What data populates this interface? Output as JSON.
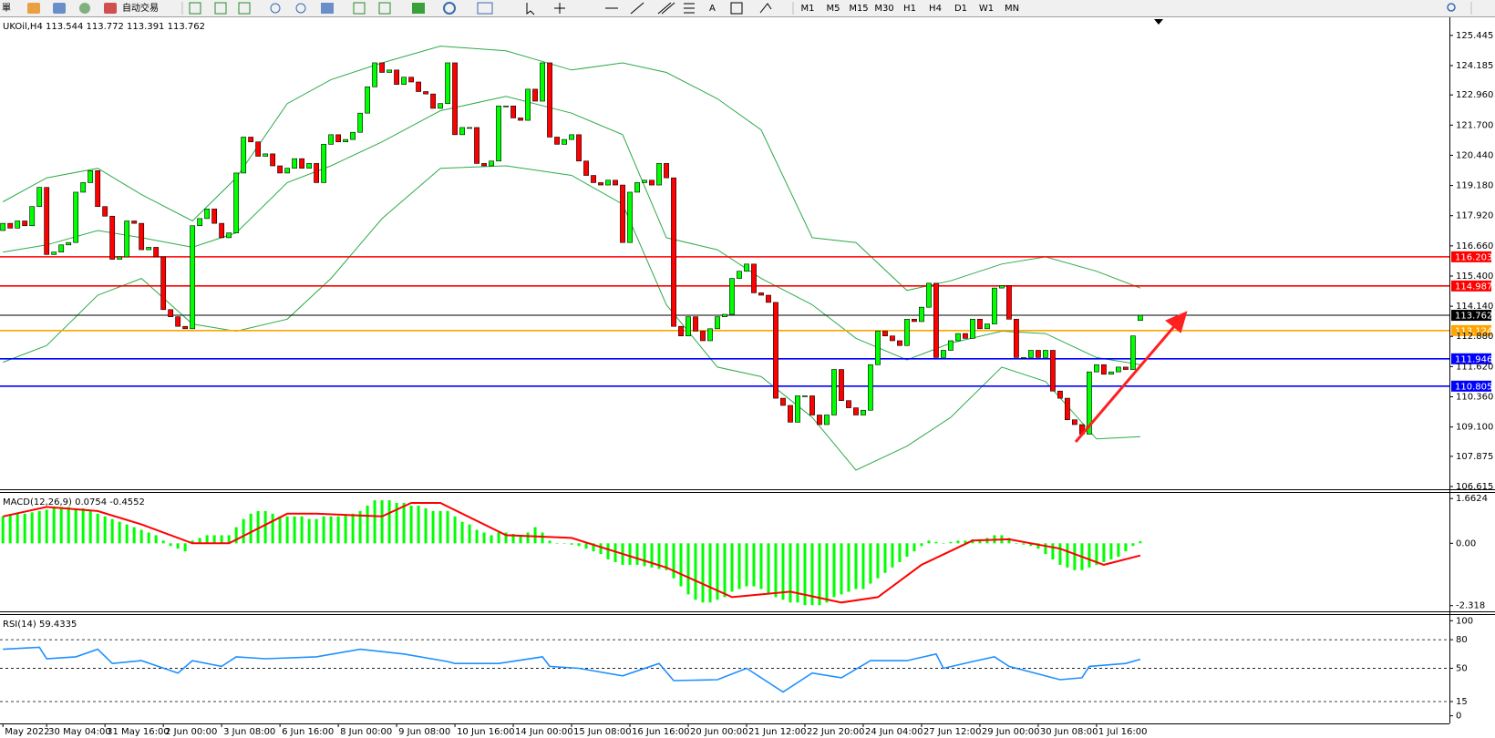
{
  "toolbar": {
    "orders_label": "單",
    "autotrade": "自动交易",
    "text_tool": "A",
    "timeframes": [
      "M1",
      "M5",
      "M15",
      "M30",
      "H1",
      "H4",
      "D1",
      "W1",
      "MN"
    ]
  },
  "chart_data": [
    {
      "type": "candlestick",
      "title": "UKOil,H4  113.544 113.772 113.391 113.762",
      "up_color": "#00ff00",
      "down_color": "#ff0000",
      "xlim": [
        -0.4,
        198.4
      ],
      "xticks": [
        {
          "value": 0,
          "label": "May 2022"
        },
        {
          "value": 6,
          "label": "30 May 04:00"
        },
        {
          "value": 14,
          "label": "31 May 16:00"
        },
        {
          "value": 22,
          "label": "2 Jun 00:00"
        },
        {
          "value": 30,
          "label": "3 Jun 08:00"
        },
        {
          "value": 38,
          "label": "6 Jun 16:00"
        },
        {
          "value": 46,
          "label": "8 Jun 00:00"
        },
        {
          "value": 54,
          "label": "9 Jun 08:00"
        },
        {
          "value": 62,
          "label": "10 Jun 16:00"
        },
        {
          "value": 70,
          "label": "14 Jun 00:00"
        },
        {
          "value": 78,
          "label": "15 Jun 08:00"
        },
        {
          "value": 86,
          "label": "16 Jun 16:00"
        },
        {
          "value": 94,
          "label": "20 Jun 00:00"
        },
        {
          "value": 102,
          "label": "21 Jun 12:00"
        },
        {
          "value": 110,
          "label": "22 Jun 20:00"
        },
        {
          "value": 118,
          "label": "24 Jun 04:00"
        },
        {
          "value": 126,
          "label": "27 Jun 12:00"
        },
        {
          "value": 134,
          "label": "29 Jun 00:00"
        },
        {
          "value": 142,
          "label": "30 Jun 08:00"
        },
        {
          "value": 150,
          "label": "1 Jul 16:00"
        }
      ],
      "ylim": [
        106.5,
        126.2
      ],
      "yticks": [
        125.445,
        124.185,
        {
          "value": 122.96,
          "label": "122.960"
        },
        {
          "value": 121.7,
          "label": "121.700"
        },
        {
          "value": 120.44,
          "label": "120.440"
        },
        {
          "value": 119.18,
          "label": "119.180"
        },
        {
          "value": 117.92,
          "label": "117.920"
        },
        {
          "value": 116.66,
          "label": "116.660"
        },
        {
          "value": 115.4,
          "label": "115.400"
        },
        {
          "value": 114.14,
          "label": "114.140"
        },
        {
          "value": 112.88,
          "label": "112.880"
        },
        {
          "value": 111.62,
          "label": "111.620"
        },
        {
          "value": 110.36,
          "label": "110.360"
        },
        {
          "value": 109.1,
          "label": "109.100"
        },
        107.875,
        106.615
      ],
      "open": [
        117.3,
        117.6,
        117.4,
        117.7,
        117.5,
        118.3,
        119.1,
        116.3,
        116.4,
        116.7,
        116.8,
        118.9,
        119.3,
        119.8,
        118.3,
        117.9,
        116.1,
        116.2,
        117.7,
        117.6,
        116.5,
        116.6,
        116.2,
        114.0,
        113.7,
        113.3,
        113.2,
        117.5,
        117.8,
        118.2,
        117.6,
        117.0,
        117.2,
        119.7,
        121.2,
        121.0,
        120.4,
        120.5,
        120.0,
        119.7,
        119.9,
        120.3,
        119.9,
        120.1,
        119.3,
        120.9,
        121.3,
        121.0,
        121.1,
        121.4,
        122.2,
        123.3,
        124.3,
        123.9,
        124.0,
        123.4,
        123.7,
        123.5,
        123.1,
        123.0,
        122.4,
        122.6,
        124.3,
        121.3,
        121.6,
        121.6,
        120.1,
        120.0,
        120.2,
        122.5,
        122.5,
        122.0,
        121.9,
        123.2,
        122.7,
        124.3,
        121.2,
        120.9,
        121.1,
        121.3,
        120.2,
        119.6,
        119.3,
        119.2,
        119.4,
        119.2,
        116.8,
        118.9,
        119.3,
        119.4,
        119.2,
        120.1,
        119.5,
        113.3,
        112.9,
        113.7,
        113.1,
        112.7,
        113.2,
        113.7,
        113.8,
        115.3,
        115.6,
        115.9,
        114.7,
        114.6,
        114.3,
        110.3,
        110.0,
        109.3,
        110.4,
        110.4,
        109.6,
        109.2,
        109.6,
        111.5,
        110.2,
        109.9,
        109.6,
        109.8,
        111.7,
        113.1,
        112.9,
        112.7,
        112.5,
        113.6,
        113.5,
        114.1,
        115.1,
        112.0,
        112.3,
        112.7,
        113.0,
        112.8,
        113.6,
        113.2,
        113.4,
        114.9,
        115.0,
        113.6,
        112.0,
        112.0,
        112.3,
        112.0,
        112.3,
        110.6,
        110.3,
        109.4,
        109.2,
        108.8,
        111.4,
        111.7,
        111.3,
        111.4,
        111.6,
        111.5,
        113.544
      ],
      "close": [
        117.6,
        117.4,
        117.7,
        117.5,
        118.3,
        119.1,
        116.3,
        116.4,
        116.7,
        116.8,
        118.9,
        119.3,
        119.8,
        118.3,
        117.9,
        116.1,
        116.2,
        117.7,
        117.6,
        116.5,
        116.6,
        116.2,
        114.0,
        113.7,
        113.3,
        113.2,
        117.5,
        117.8,
        118.2,
        117.6,
        117.0,
        117.2,
        119.7,
        121.2,
        121.0,
        120.4,
        120.5,
        120.0,
        119.7,
        119.9,
        120.3,
        119.9,
        120.1,
        119.3,
        120.9,
        121.3,
        121.0,
        121.1,
        121.4,
        122.2,
        123.3,
        124.3,
        123.9,
        124.0,
        123.4,
        123.7,
        123.5,
        123.1,
        123.0,
        122.4,
        122.6,
        124.3,
        121.3,
        121.6,
        121.6,
        120.1,
        120.0,
        120.2,
        122.5,
        122.5,
        122.0,
        121.9,
        123.2,
        122.7,
        124.3,
        121.2,
        120.9,
        121.1,
        121.3,
        120.2,
        119.6,
        119.3,
        119.2,
        119.4,
        119.2,
        116.8,
        118.9,
        119.3,
        119.4,
        119.2,
        120.1,
        119.5,
        113.3,
        112.9,
        113.7,
        113.1,
        112.7,
        113.2,
        113.7,
        113.8,
        115.3,
        115.6,
        115.9,
        114.7,
        114.6,
        114.3,
        110.3,
        110.0,
        109.3,
        110.4,
        110.4,
        109.6,
        109.2,
        109.6,
        111.5,
        110.2,
        109.9,
        109.6,
        109.8,
        111.7,
        113.1,
        112.9,
        112.7,
        112.5,
        113.6,
        113.5,
        114.1,
        115.1,
        112.0,
        112.3,
        112.7,
        113.0,
        112.8,
        113.6,
        113.2,
        113.4,
        114.9,
        115.0,
        113.6,
        112.0,
        112.0,
        112.3,
        112.0,
        112.3,
        110.6,
        110.3,
        109.4,
        109.2,
        108.8,
        111.4,
        111.7,
        111.3,
        111.4,
        111.6,
        111.5,
        112.9,
        113.762
      ],
      "series": [
        {
          "color": "#2eaa4a",
          "x": [
            0,
            6,
            13,
            19,
            26,
            32,
            39,
            45,
            52,
            60,
            69,
            78,
            85,
            91,
            98,
            104,
            111,
            117,
            124,
            130,
            137,
            143,
            150,
            156
          ],
          "values": [
            118.5,
            119.5,
            119.9,
            118.8,
            117.7,
            119.5,
            122.6,
            123.6,
            124.3,
            125.0,
            124.8,
            124.0,
            124.3,
            123.9,
            122.8,
            121.5,
            117.0,
            116.8,
            114.8,
            115.2,
            115.9,
            116.2,
            115.6,
            114.9
          ]
        },
        {
          "color": "#2eaa4a",
          "x": [
            0,
            6,
            13,
            19,
            26,
            32,
            39,
            45,
            52,
            60,
            69,
            78,
            85,
            91,
            98,
            104,
            111,
            117,
            124,
            130,
            137,
            143,
            150,
            156
          ],
          "values": [
            116.4,
            116.7,
            117.3,
            117.0,
            116.6,
            117.2,
            119.3,
            120.0,
            121.0,
            122.3,
            122.9,
            122.2,
            121.3,
            117.0,
            116.5,
            115.3,
            114.2,
            112.8,
            111.9,
            112.6,
            113.1,
            113.0,
            112.0,
            111.7
          ]
        },
        {
          "color": "#2eaa4a",
          "x": [
            0,
            6,
            13,
            19,
            26,
            32,
            39,
            45,
            52,
            60,
            69,
            78,
            85,
            91,
            98,
            104,
            111,
            117,
            124,
            130,
            137,
            143,
            150,
            156
          ],
          "values": [
            111.8,
            112.5,
            114.6,
            115.3,
            113.4,
            113.1,
            113.6,
            115.3,
            117.8,
            119.9,
            120.0,
            119.6,
            118.4,
            114.2,
            111.6,
            111.2,
            109.5,
            107.3,
            108.3,
            109.5,
            111.6,
            111.0,
            108.6,
            108.7
          ]
        }
      ],
      "levels": [
        {
          "value": 116.203,
          "color": "#ff0000"
        },
        {
          "value": 114.987,
          "color": "#ff0000"
        },
        {
          "value": 113.762,
          "color": "#000000"
        },
        {
          "value": 113.124,
          "color": "#ffa500"
        },
        {
          "value": 111.946,
          "color": "#0000ff"
        },
        {
          "value": 110.805,
          "color": "#0000ff"
        }
      ]
    },
    {
      "type": "macd",
      "title": "MACD(12,26,9) 0.0754 -0.4552",
      "ylim": [
        -2.53,
        1.873
      ],
      "yticks": [
        1.6624,
        {
          "value": 0,
          "label": "0.00"
        },
        -2.318
      ],
      "histogram": {
        "color": "#00ff00",
        "values": [
          1.0,
          1.05,
          1.1,
          1.1,
          1.15,
          1.2,
          1.25,
          1.3,
          1.35,
          1.35,
          1.3,
          1.3,
          1.2,
          1.1,
          1.0,
          0.9,
          0.8,
          0.7,
          0.6,
          0.5,
          0.4,
          0.3,
          0.1,
          -0.1,
          -0.2,
          -0.3,
          0.1,
          0.2,
          0.3,
          0.3,
          0.3,
          0.3,
          0.6,
          0.9,
          1.1,
          1.2,
          1.2,
          1.1,
          1.0,
          1.0,
          1.0,
          1.0,
          0.9,
          0.9,
          1.0,
          1.0,
          1.0,
          1.05,
          1.1,
          1.2,
          1.4,
          1.6,
          1.6,
          1.6,
          1.5,
          1.5,
          1.4,
          1.4,
          1.3,
          1.2,
          1.2,
          1.2,
          1.0,
          0.8,
          0.7,
          0.5,
          0.4,
          0.3,
          0.4,
          0.4,
          0.35,
          0.3,
          0.4,
          0.6,
          0.4,
          0.1,
          0.0,
          0.0,
          -0.05,
          -0.1,
          -0.2,
          -0.3,
          -0.4,
          -0.6,
          -0.7,
          -0.8,
          -0.8,
          -0.8,
          -0.85,
          -0.9,
          -0.95,
          -1.0,
          -1.3,
          -1.6,
          -1.9,
          -2.1,
          -2.2,
          -2.2,
          -2.1,
          -2.0,
          -1.8,
          -1.7,
          -1.6,
          -1.6,
          -1.7,
          -1.9,
          -2.0,
          -2.1,
          -2.2,
          -2.2,
          -2.3,
          -2.3,
          -2.3,
          -2.2,
          -2.0,
          -1.9,
          -1.8,
          -1.7,
          -1.7,
          -1.5,
          -1.3,
          -1.1,
          -0.9,
          -0.7,
          -0.5,
          -0.3,
          -0.1,
          0.1,
          0.05,
          0.0,
          0.05,
          0.1,
          0.1,
          0.15,
          0.15,
          0.2,
          0.3,
          0.3,
          0.2,
          0.0,
          -0.05,
          -0.1,
          -0.2,
          -0.4,
          -0.6,
          -0.8,
          -0.9,
          -1.0,
          -1.0,
          -0.9,
          -0.8,
          -0.7,
          -0.6,
          -0.5,
          -0.3,
          -0.1,
          0.0754
        ]
      },
      "signal": {
        "color": "#ff0000",
        "x": [
          0,
          6,
          13,
          19,
          26,
          31,
          39,
          43,
          52,
          56,
          60,
          69,
          78,
          91,
          100,
          108,
          115,
          120,
          126,
          133,
          138,
          145,
          151,
          156
        ],
        "values": [
          1.0,
          1.35,
          1.2,
          0.7,
          0.0,
          0.0,
          1.1,
          1.1,
          1.0,
          1.5,
          1.5,
          0.3,
          0.2,
          -0.9,
          -2.0,
          -1.8,
          -2.2,
          -2.0,
          -0.8,
          0.1,
          0.15,
          -0.2,
          -0.8,
          -0.4552
        ]
      }
    },
    {
      "type": "line",
      "title": "RSI(14) 59.4335",
      "color": "#1e90ff",
      "ylim": [
        -8,
        106
      ],
      "yticks": [
        100,
        80,
        50,
        15,
        0
      ],
      "levels": [
        80,
        50,
        15
      ],
      "x": [
        0,
        5,
        6,
        10,
        13,
        15,
        19,
        24,
        26,
        30,
        32,
        36,
        43,
        49,
        55,
        61,
        62,
        68,
        74,
        75,
        79,
        85,
        90,
        92,
        98,
        102,
        107,
        111,
        115,
        119,
        124,
        128,
        129,
        133,
        136,
        138,
        145,
        148,
        149,
        154,
        156
      ],
      "values": [
        70,
        72,
        60,
        62,
        70,
        55,
        58,
        45,
        58,
        52,
        62,
        60,
        62,
        70,
        65,
        57,
        55,
        55,
        62,
        52,
        50,
        42,
        55,
        37,
        38,
        50,
        25,
        45,
        40,
        58,
        58,
        65,
        50,
        57,
        62,
        52,
        38,
        40,
        52,
        55,
        59.4335
      ]
    }
  ]
}
